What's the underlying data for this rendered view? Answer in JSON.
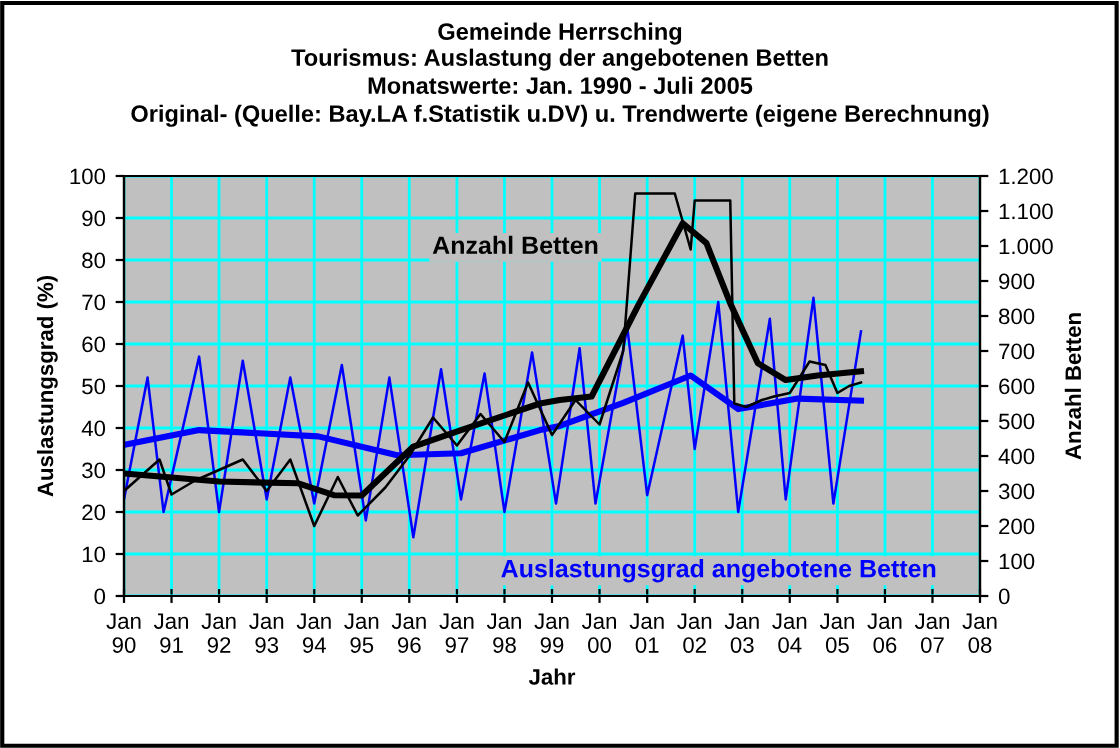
{
  "chart_data": {
    "type": "line",
    "title": "Gemeinde Herrsching",
    "subtitle": "Tourismus: Auslastung der angebotenen Betten\nMonatswerte: Jan. 1990 - Juli 2005\nOriginal- (Quelle: Bay.LA f.Statistik u.DV) u. Trendwerte (eigene Berechnung)",
    "xlabel": "Jahr",
    "ylabel": "Auslastungsgrad (%)",
    "y2label": "Anzahl Betten",
    "xlim": [
      "1990-01",
      "2008-01"
    ],
    "xticks": [
      {
        "value": "1990-01",
        "label": "Jan\n90"
      },
      {
        "value": "1991-01",
        "label": "Jan\n91"
      },
      {
        "value": "1992-01",
        "label": "Jan\n92"
      },
      {
        "value": "1993-01",
        "label": "Jan\n93"
      },
      {
        "value": "1994-01",
        "label": "Jan\n94"
      },
      {
        "value": "1995-01",
        "label": "Jan\n95"
      },
      {
        "value": "1996-01",
        "label": "Jan\n96"
      },
      {
        "value": "1997-01",
        "label": "Jan\n97"
      },
      {
        "value": "1998-01",
        "label": "Jan\n98"
      },
      {
        "value": "1999-01",
        "label": "Jan\n99"
      },
      {
        "value": "2000-01",
        "label": "Jan\n00"
      },
      {
        "value": "2001-01",
        "label": "Jan\n01"
      },
      {
        "value": "2002-01",
        "label": "Jan\n02"
      },
      {
        "value": "2003-01",
        "label": "Jan\n03"
      },
      {
        "value": "2004-01",
        "label": "Jan\n04"
      },
      {
        "value": "2005-01",
        "label": "Jan\n05"
      },
      {
        "value": "2006-01",
        "label": "Jan\n06"
      },
      {
        "value": "2007-01",
        "label": "Jan\n07"
      },
      {
        "value": "2008-01",
        "label": "Jan\n08"
      }
    ],
    "ylim": [
      0,
      100
    ],
    "yticks": [
      0,
      10,
      20,
      30,
      40,
      50,
      60,
      70,
      80,
      90,
      100
    ],
    "y2lim": [
      0,
      1200
    ],
    "y2ticks": [
      0,
      100,
      200,
      300,
      400,
      500,
      600,
      700,
      800,
      900,
      {
        "value": 1000,
        "label": "1.000"
      },
      {
        "value": 1100,
        "label": "1.100"
      },
      {
        "value": 1200,
        "label": "1.200"
      }
    ],
    "grid": true,
    "legend": false,
    "marker": "none",
    "line_style": "solid",
    "series": [
      {
        "color": "#0000ff",
        "x": [
          "1990-01",
          "1990-07",
          "1990-11",
          "1991-08",
          "1992-01",
          "1992-07",
          "1993-01",
          "1993-07",
          "1994-01",
          "1994-08",
          "1995-02",
          "1995-08",
          "1996-02",
          "1996-09",
          "1997-02",
          "1997-08",
          "1998-01",
          "1998-08",
          "1999-02",
          "1999-08",
          "1999-12",
          "2000-08",
          "2001-01",
          "2001-10",
          "2002-01",
          "2002-07",
          "2002-12",
          "2003-08",
          "2003-12",
          "2004-07",
          "2004-12",
          "2005-07"
        ],
        "values": [
          23,
          52,
          20,
          57,
          20,
          56,
          23,
          52,
          22,
          55,
          18,
          52,
          14,
          54,
          23,
          53,
          20,
          58,
          22,
          59,
          22,
          64,
          24,
          62,
          35,
          70,
          20,
          66,
          23,
          71,
          22,
          63
        ]
      },
      {
        "name": "Auslastungsgrad angebotene Betten",
        "color": "#0000ff",
        "x": [
          "1990-01",
          "1991-08",
          "1994-02",
          "1995-10",
          "1997-02",
          "1998-10",
          "1999-03",
          "2000-07",
          "2001-12",
          "2002-12",
          "2004-03",
          "2005-07"
        ],
        "values": [
          36,
          39.5,
          38,
          33.5,
          34,
          39.5,
          40.5,
          46,
          52.5,
          44.5,
          47,
          46.5
        ]
      },
      {
        "color": "#000000",
        "axis": "y2",
        "x": [
          "1990-01",
          "1990-10",
          "1991-01",
          "1991-07",
          "1992-07",
          "1993-01",
          "1993-07",
          "1994-01",
          "1994-07",
          "1994-12",
          "1995-07",
          "1996-01",
          "1996-07",
          "1997-01",
          "1997-07",
          "1998-01",
          "1998-07",
          "1999-01",
          "1999-07",
          "2000-01",
          "2000-07",
          "2000-10",
          "2001-04",
          "2001-08",
          "2001-12",
          "2002-01",
          "2002-10",
          "2002-11",
          "2003-02",
          "2003-06",
          "2003-09",
          "2004-01",
          "2004-06",
          "2004-10",
          "2005-01",
          "2005-04",
          "2005-07"
        ],
        "values": [
          300,
          390,
          290,
          330,
          390,
          300,
          390,
          200,
          340,
          230,
          310,
          400,
          510,
          430,
          520,
          440,
          610,
          460,
          560,
          490,
          700,
          1150,
          1150,
          1150,
          990,
          1130,
          1130,
          550,
          540,
          560,
          570,
          580,
          670,
          660,
          580,
          600,
          610
        ]
      },
      {
        "name": "Anzahl Betten",
        "color": "#000000",
        "axis": "y2",
        "x": [
          "1990-01",
          "1992-01",
          "1993-09",
          "1994-06",
          "1995-01",
          "1996-02",
          "1997-02",
          "1998-10",
          "1999-03",
          "1999-11",
          "2000-11",
          "2001-10",
          "2002-04",
          "2002-10",
          "2003-05",
          "2003-12",
          "2004-08",
          "2005-07"
        ],
        "values": [
          350,
          327,
          322,
          288,
          287,
          427,
          474,
          550,
          560,
          570,
          836,
          1065,
          1008,
          836,
          665,
          617,
          630,
          642
        ]
      }
    ]
  }
}
